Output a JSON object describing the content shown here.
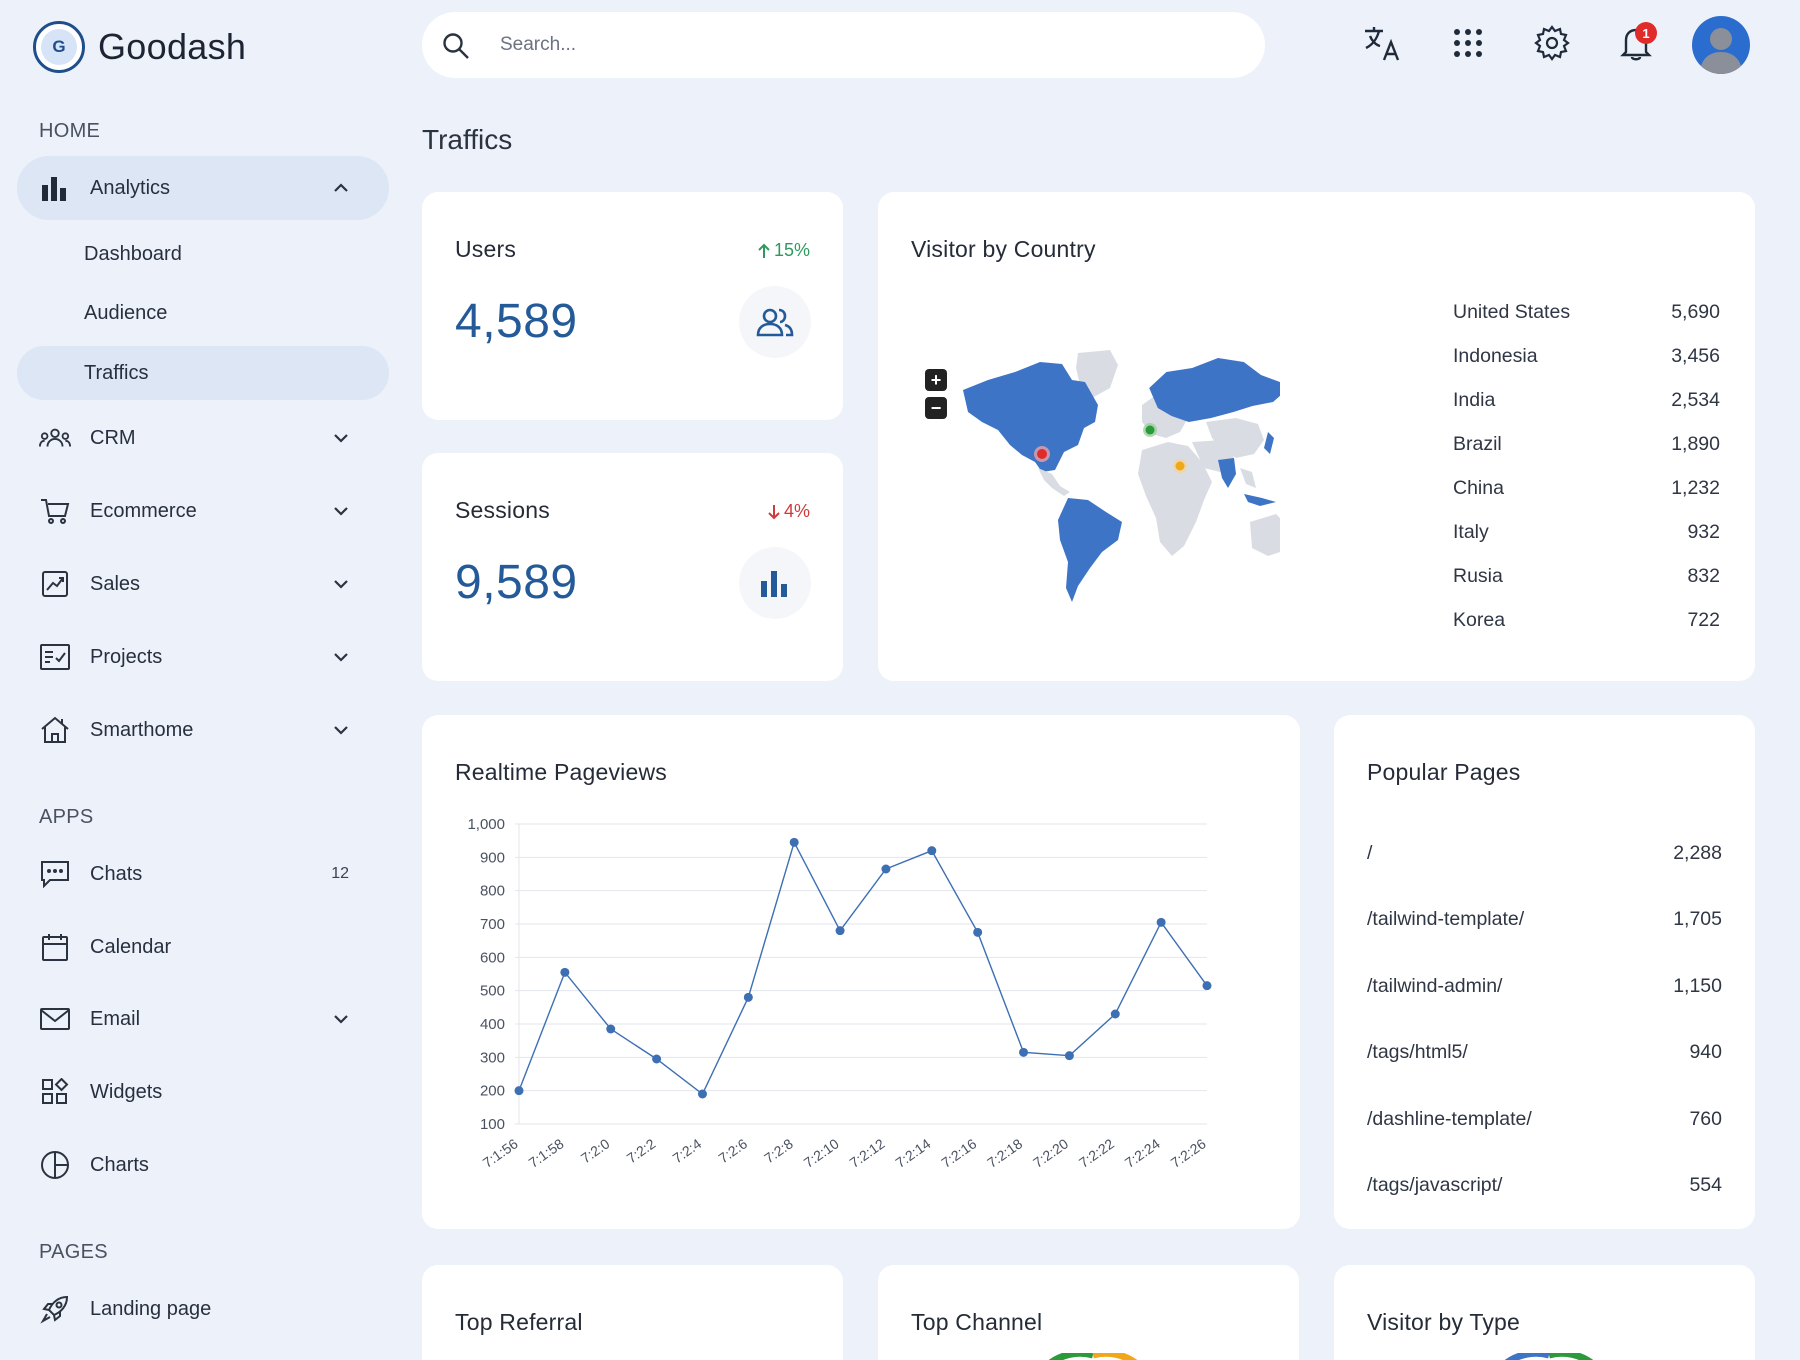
{
  "brand": {
    "logo_letter": "G",
    "name": "Goodash"
  },
  "sidebar": {
    "sections": [
      {
        "label": "HOME"
      },
      {
        "label": "APPS"
      },
      {
        "label": "PAGES"
      }
    ],
    "analytics": {
      "label": "Analytics",
      "icon": "bar-chart-icon"
    },
    "sub_items": [
      {
        "label": "Dashboard"
      },
      {
        "label": "Audience"
      },
      {
        "label": "Traffics"
      }
    ],
    "items": [
      {
        "label": "CRM",
        "icon": "users-group-icon"
      },
      {
        "label": "Ecommerce",
        "icon": "cart-icon"
      },
      {
        "label": "Sales",
        "icon": "chart-box-icon"
      },
      {
        "label": "Projects",
        "icon": "checklist-icon"
      },
      {
        "label": "Smarthome",
        "icon": "home-icon"
      },
      {
        "label": "Chats",
        "icon": "chat-icon",
        "badge": "12"
      },
      {
        "label": "Calendar",
        "icon": "calendar-icon"
      },
      {
        "label": "Email",
        "icon": "mail-icon"
      },
      {
        "label": "Widgets",
        "icon": "widgets-icon"
      },
      {
        "label": "Charts",
        "icon": "pie-icon"
      },
      {
        "label": "Landing page",
        "icon": "rocket-icon"
      }
    ]
  },
  "search": {
    "placeholder": "Search..."
  },
  "topbar": {
    "notification_count": "1"
  },
  "page": {
    "title": "Traffics"
  },
  "users_card": {
    "title": "Users",
    "value": "4,589",
    "trend": "15%",
    "trend_dir": "up"
  },
  "sessions_card": {
    "title": "Sessions",
    "value": "9,589",
    "trend": "4%",
    "trend_dir": "down"
  },
  "country_card": {
    "title": "Visitor by Country",
    "rows": [
      {
        "country": "United States",
        "value": "5,690"
      },
      {
        "country": "Indonesia",
        "value": "3,456"
      },
      {
        "country": "India",
        "value": "2,534"
      },
      {
        "country": "Brazil",
        "value": "1,890"
      },
      {
        "country": "China",
        "value": "1,232"
      },
      {
        "country": "Italy",
        "value": "932"
      },
      {
        "country": "Rusia",
        "value": "832"
      },
      {
        "country": "Korea",
        "value": "722"
      }
    ],
    "map_colors": {
      "highlight": "#3d74c6",
      "base": "#d9dde3"
    }
  },
  "pageviews_card": {
    "title": "Realtime Pageviews"
  },
  "chart_data": {
    "type": "line",
    "title": "Realtime Pageviews",
    "x": [
      "7:1:56",
      "7:1:58",
      "7:2:0",
      "7:2:2",
      "7:2:4",
      "7:2:6",
      "7:2:8",
      "7:2:10",
      "7:2:12",
      "7:2:14",
      "7:2:16",
      "7:2:18",
      "7:2:20",
      "7:2:22",
      "7:2:24",
      "7:2:26"
    ],
    "series": [
      {
        "values": [
          200,
          555,
          385,
          295,
          190,
          480,
          945,
          680,
          865,
          920,
          675,
          315,
          305,
          430,
          705,
          515
        ]
      }
    ],
    "yticks": [
      100,
      200,
      300,
      400,
      500,
      600,
      700,
      800,
      900,
      1000
    ],
    "ytick_labels": [
      "100",
      "200",
      "300",
      "400",
      "500",
      "600",
      "700",
      "800",
      "900",
      "1,000"
    ],
    "ylim": [
      100,
      1000
    ],
    "grid": true,
    "color": "#3d6fb3"
  },
  "popular_card": {
    "title": "Popular Pages",
    "rows": [
      {
        "path": "/",
        "value": "2,288"
      },
      {
        "path": "/tailwind-template/",
        "value": "1,705"
      },
      {
        "path": "/tailwind-admin/",
        "value": "1,150"
      },
      {
        "path": "/tags/html5/",
        "value": "940"
      },
      {
        "path": "/dashline-template/",
        "value": "760"
      },
      {
        "path": "/tags/javascript/",
        "value": "554"
      }
    ]
  },
  "bottom_cards": [
    {
      "title": "Top Referral"
    },
    {
      "title": "Top Channel"
    },
    {
      "title": "Visitor by Type"
    }
  ]
}
